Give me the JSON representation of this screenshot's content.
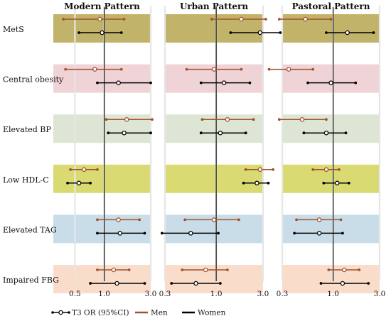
{
  "chart_data": {
    "type": "forest",
    "xscale": "log",
    "xlim": [
      0.3,
      3.0
    ],
    "panels": [
      {
        "title": "Modern Pattern",
        "ticks": [
          0.5,
          1.0,
          3.0
        ],
        "tick_labels": [
          "0.5",
          "1.0",
          "3.0"
        ]
      },
      {
        "title": "Urban Pattern",
        "ticks": [
          0.3,
          1.0,
          3.0
        ],
        "tick_labels": [
          "0.3",
          "1.0",
          "3.0"
        ]
      },
      {
        "title": "Pastoral Pattern",
        "ticks": [
          0.3,
          1.0,
          3.0
        ],
        "tick_labels": [
          "0.3",
          "1.0",
          "3.0"
        ]
      }
    ],
    "outcomes": [
      {
        "label": "MetS",
        "color": "#c2b36b"
      },
      {
        "label": "Central obesity",
        "color": "#f0d3d6"
      },
      {
        "label": "Elevated BP",
        "color": "#dde5d4"
      },
      {
        "label": "Low HDL-C",
        "color": "#d9db72"
      },
      {
        "label": "Elevated TAG",
        "color": "#c9dde9"
      },
      {
        "label": "Impaired FBG",
        "color": "#fadcca"
      }
    ],
    "series": [
      {
        "name": "Men",
        "color": "#a0522d",
        "estimates": [
          [
            [
              0.9,
              0.38,
              1.6
            ],
            [
              1.8,
              0.9,
              3.2
            ],
            [
              0.52,
              0.28,
              0.95
            ]
          ],
          [
            [
              0.8,
              0.4,
              1.5
            ],
            [
              0.95,
              0.5,
              1.8
            ],
            [
              0.35,
              0.22,
              0.62
            ]
          ],
          [
            [
              1.7,
              1.05,
              3.1
            ],
            [
              1.3,
              0.72,
              2.4
            ],
            [
              0.48,
              0.28,
              0.85
            ]
          ],
          [
            [
              0.62,
              0.45,
              0.85
            ],
            [
              2.8,
              2.0,
              3.8
            ],
            [
              0.85,
              0.62,
              1.15
            ]
          ],
          [
            [
              1.4,
              0.85,
              2.3
            ],
            [
              0.95,
              0.48,
              1.7
            ],
            [
              0.72,
              0.42,
              1.2
            ]
          ],
          [
            [
              1.25,
              0.85,
              1.8
            ],
            [
              0.78,
              0.45,
              1.3
            ],
            [
              1.3,
              0.9,
              1.85
            ]
          ]
        ]
      },
      {
        "name": "Women",
        "color": "#000000",
        "estimates": [
          [
            [
              0.95,
              0.55,
              1.5
            ],
            [
              2.8,
              1.4,
              4.5
            ],
            [
              1.4,
              0.85,
              2.6
            ]
          ],
          [
            [
              1.4,
              0.85,
              3.0
            ],
            [
              1.2,
              0.7,
              2.2
            ],
            [
              0.95,
              0.55,
              1.7
            ]
          ],
          [
            [
              1.6,
              1.1,
              3.0
            ],
            [
              1.1,
              0.7,
              2.0
            ],
            [
              0.85,
              0.5,
              1.35
            ]
          ],
          [
            [
              0.55,
              0.42,
              0.72
            ],
            [
              2.6,
              1.9,
              3.4
            ],
            [
              1.1,
              0.8,
              1.45
            ]
          ],
          [
            [
              1.45,
              0.85,
              2.6
            ],
            [
              0.55,
              0.28,
              1.05
            ],
            [
              0.72,
              0.4,
              1.25
            ]
          ],
          [
            [
              1.35,
              0.72,
              2.6
            ],
            [
              0.62,
              0.35,
              1.1
            ],
            [
              1.25,
              0.75,
              2.3
            ]
          ]
        ]
      }
    ],
    "legend": {
      "marker_label": "T3 OR (95%CI)",
      "items": [
        {
          "label": "Men",
          "color": "#a0522d"
        },
        {
          "label": "Women",
          "color": "#000000"
        }
      ]
    }
  }
}
